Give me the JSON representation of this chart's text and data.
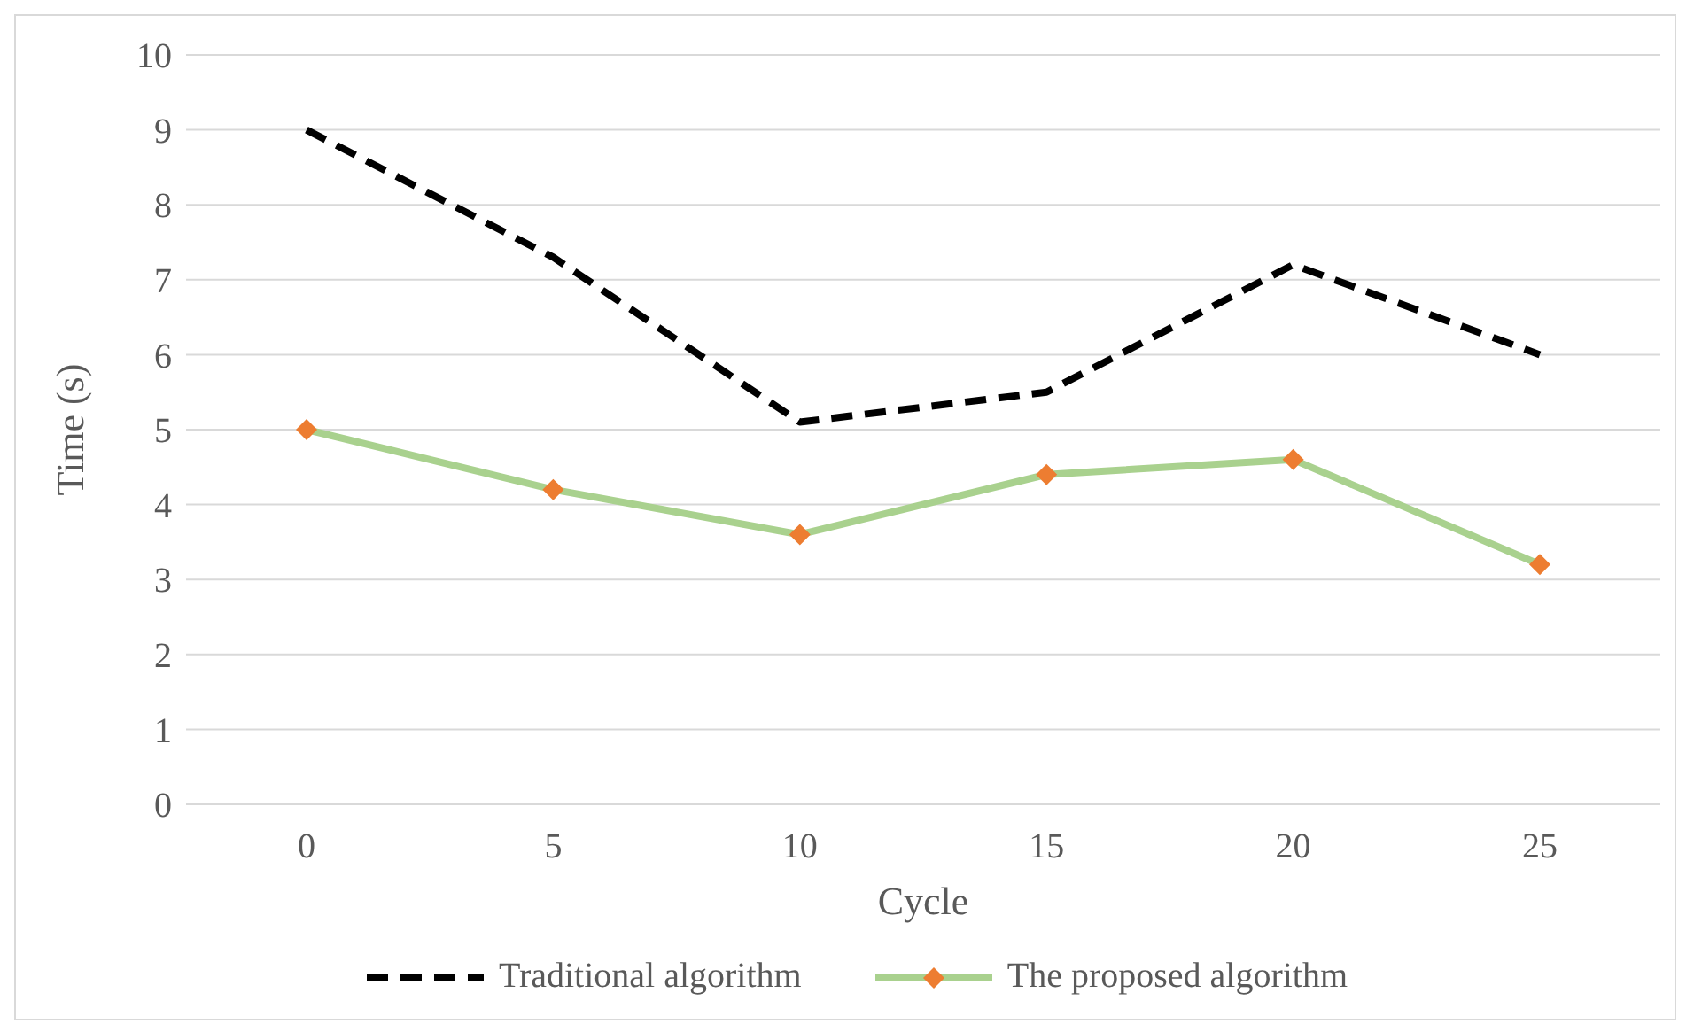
{
  "chart_data": {
    "type": "line",
    "xlabel": "Cycle",
    "ylabel": "Time (s)",
    "categories": [
      "0",
      "5",
      "10",
      "15",
      "20",
      "25"
    ],
    "series": [
      {
        "name": "Traditional algorithm",
        "color": "#000000",
        "line_style": "dashed",
        "marker": "none",
        "values": [
          9,
          7.3,
          5.1,
          5.5,
          7.2,
          6.0
        ]
      },
      {
        "name": "The proposed algorithm",
        "color": "#a9d18e",
        "line_style": "solid",
        "marker": "diamond",
        "colors": [
          "#ed7d31",
          "#ed7d31",
          "#ed7d31",
          "#ed7d31",
          "#ed7d31",
          "#ed7d31"
        ],
        "values": [
          5,
          4.2,
          3.6,
          4.4,
          4.6,
          3.2
        ]
      }
    ],
    "ylim": [
      0,
      10
    ],
    "yticks": [
      0,
      1,
      2,
      3,
      4,
      5,
      6,
      7,
      8,
      9,
      10
    ],
    "grid": "y",
    "legend": "bottom"
  }
}
